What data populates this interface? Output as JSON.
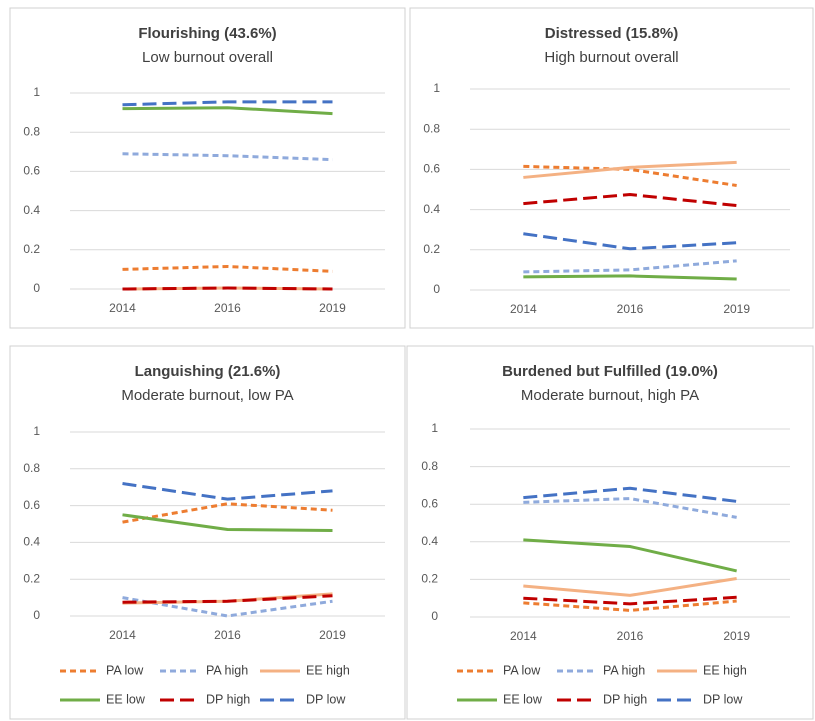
{
  "chart_data": [
    {
      "type": "line",
      "title": "Flourishing (43.6%)",
      "subtitle": "Low burnout overall",
      "categories": [
        "2014",
        "2016",
        "2019"
      ],
      "ylim": [
        0,
        1
      ],
      "yticks": [
        0,
        0.2,
        0.4,
        0.6,
        0.8,
        1
      ],
      "grid": true,
      "series": [
        {
          "color": "#ed7d31",
          "dash": "6,4",
          "values": [
            0.1,
            0.115,
            0.09
          ]
        },
        {
          "color": "#8faadc",
          "dash": "6,4",
          "values": [
            0.69,
            0.68,
            0.66
          ]
        },
        {
          "color": "#f4b183",
          "dash": "none",
          "values": [
            0,
            0.005,
            0
          ]
        },
        {
          "color": "#70ad47",
          "dash": "none",
          "values": [
            0.92,
            0.925,
            0.895
          ]
        },
        {
          "color": "#c00000",
          "dash": "14,6",
          "values": [
            0,
            0.005,
            0
          ]
        },
        {
          "color": "#4472c4",
          "dash": "14,6",
          "values": [
            0.94,
            0.955,
            0.955
          ]
        }
      ]
    },
    {
      "type": "line",
      "title": "Distressed (15.8%)",
      "subtitle": "High burnout overall",
      "categories": [
        "2014",
        "2016",
        "2019"
      ],
      "ylim": [
        0,
        1
      ],
      "yticks": [
        0,
        0.2,
        0.4,
        0.6,
        0.8,
        1
      ],
      "grid": true,
      "series": [
        {
          "color": "#ed7d31",
          "dash": "6,4",
          "values": [
            0.615,
            0.6,
            0.52
          ]
        },
        {
          "color": "#8faadc",
          "dash": "6,4",
          "values": [
            0.09,
            0.1,
            0.145
          ]
        },
        {
          "color": "#f4b183",
          "dash": "none",
          "values": [
            0.56,
            0.61,
            0.635
          ]
        },
        {
          "color": "#70ad47",
          "dash": "none",
          "values": [
            0.065,
            0.07,
            0.055
          ]
        },
        {
          "color": "#c00000",
          "dash": "14,6",
          "values": [
            0.43,
            0.475,
            0.42
          ]
        },
        {
          "color": "#4472c4",
          "dash": "14,6",
          "values": [
            0.28,
            0.205,
            0.235
          ]
        }
      ]
    },
    {
      "type": "line",
      "title": "Languishing (21.6%)",
      "subtitle": "Moderate burnout, low PA",
      "categories": [
        "2014",
        "2016",
        "2019"
      ],
      "ylim": [
        0,
        1
      ],
      "yticks": [
        0,
        0.2,
        0.4,
        0.6,
        0.8,
        1
      ],
      "grid": true,
      "series": [
        {
          "name": "PA low",
          "color": "#ed7d31",
          "dash": "6,4",
          "values": [
            0.51,
            0.61,
            0.575
          ]
        },
        {
          "name": "PA high",
          "color": "#8faadc",
          "dash": "6,4",
          "values": [
            0.1,
            0.0,
            0.08
          ]
        },
        {
          "name": "EE high",
          "color": "#f4b183",
          "dash": "none",
          "values": [
            0.07,
            0.08,
            0.12
          ]
        },
        {
          "name": "EE low",
          "color": "#70ad47",
          "dash": "none",
          "values": [
            0.55,
            0.47,
            0.465
          ]
        },
        {
          "name": "DP high",
          "color": "#c00000",
          "dash": "14,6",
          "values": [
            0.075,
            0.08,
            0.11
          ]
        },
        {
          "name": "DP low",
          "color": "#4472c4",
          "dash": "14,6",
          "values": [
            0.72,
            0.635,
            0.68
          ]
        }
      ]
    },
    {
      "type": "line",
      "title": "Burdened but Fulfilled (19.0%)",
      "subtitle": "Moderate burnout, high PA",
      "categories": [
        "2014",
        "2016",
        "2019"
      ],
      "ylim": [
        0,
        1
      ],
      "yticks": [
        0,
        0.2,
        0.4,
        0.6,
        0.8,
        1
      ],
      "grid": true,
      "series": [
        {
          "name": "PA low",
          "color": "#ed7d31",
          "dash": "6,4",
          "values": [
            0.075,
            0.035,
            0.085
          ]
        },
        {
          "name": "PA high",
          "color": "#8faadc",
          "dash": "6,4",
          "values": [
            0.61,
            0.63,
            0.53
          ]
        },
        {
          "name": "EE high",
          "color": "#f4b183",
          "dash": "none",
          "values": [
            0.165,
            0.115,
            0.205
          ]
        },
        {
          "name": "EE low",
          "color": "#70ad47",
          "dash": "none",
          "values": [
            0.41,
            0.375,
            0.245
          ]
        },
        {
          "name": "DP high",
          "color": "#c00000",
          "dash": "14,6",
          "values": [
            0.1,
            0.07,
            0.105
          ]
        },
        {
          "name": "DP low",
          "color": "#4472c4",
          "dash": "14,6",
          "values": [
            0.635,
            0.685,
            0.615
          ]
        }
      ]
    }
  ]
}
